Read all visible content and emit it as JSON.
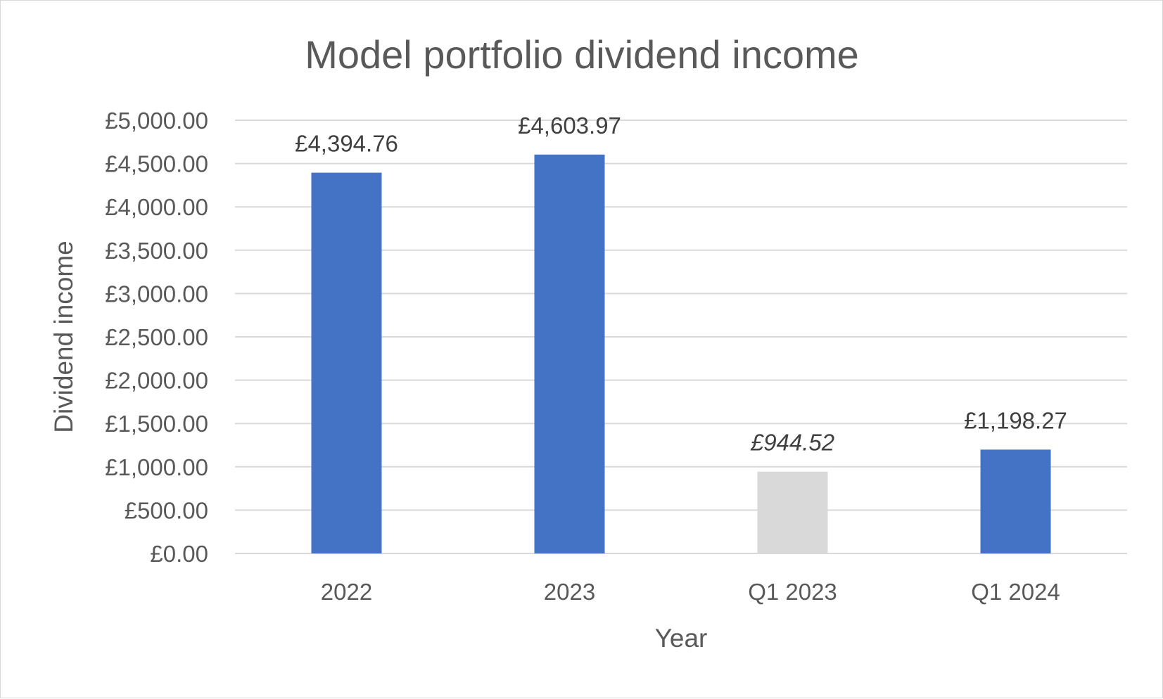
{
  "chart_data": {
    "type": "bar",
    "title": "Model portfolio dividend income",
    "xlabel": "Year",
    "ylabel": "Dividend income",
    "categories": [
      "2022",
      "2023",
      "Q1 2023",
      "Q1 2024"
    ],
    "values": [
      4394.76,
      4603.97,
      944.52,
      1198.27
    ],
    "data_labels": [
      "£4,394.76",
      "£4,603.97",
      "£944.52",
      "£1,198.27"
    ],
    "label_italic": [
      false,
      false,
      true,
      false
    ],
    "bar_colors": [
      "#4472c4",
      "#4472c4",
      "#d9d9d9",
      "#4472c4"
    ],
    "ylim": [
      0,
      5000
    ],
    "yticks": [
      0,
      500,
      1000,
      1500,
      2000,
      2500,
      3000,
      3500,
      4000,
      4500,
      5000
    ],
    "ytick_labels": [
      "£0.00",
      "£500.00",
      "£1,000.00",
      "£1,500.00",
      "£2,000.00",
      "£2,500.00",
      "£3,000.00",
      "£3,500.00",
      "£4,000.00",
      "£4,500.00",
      "£5,000.00"
    ],
    "grid": true,
    "gridline_color": "#d9d9d9",
    "legend": "none"
  }
}
